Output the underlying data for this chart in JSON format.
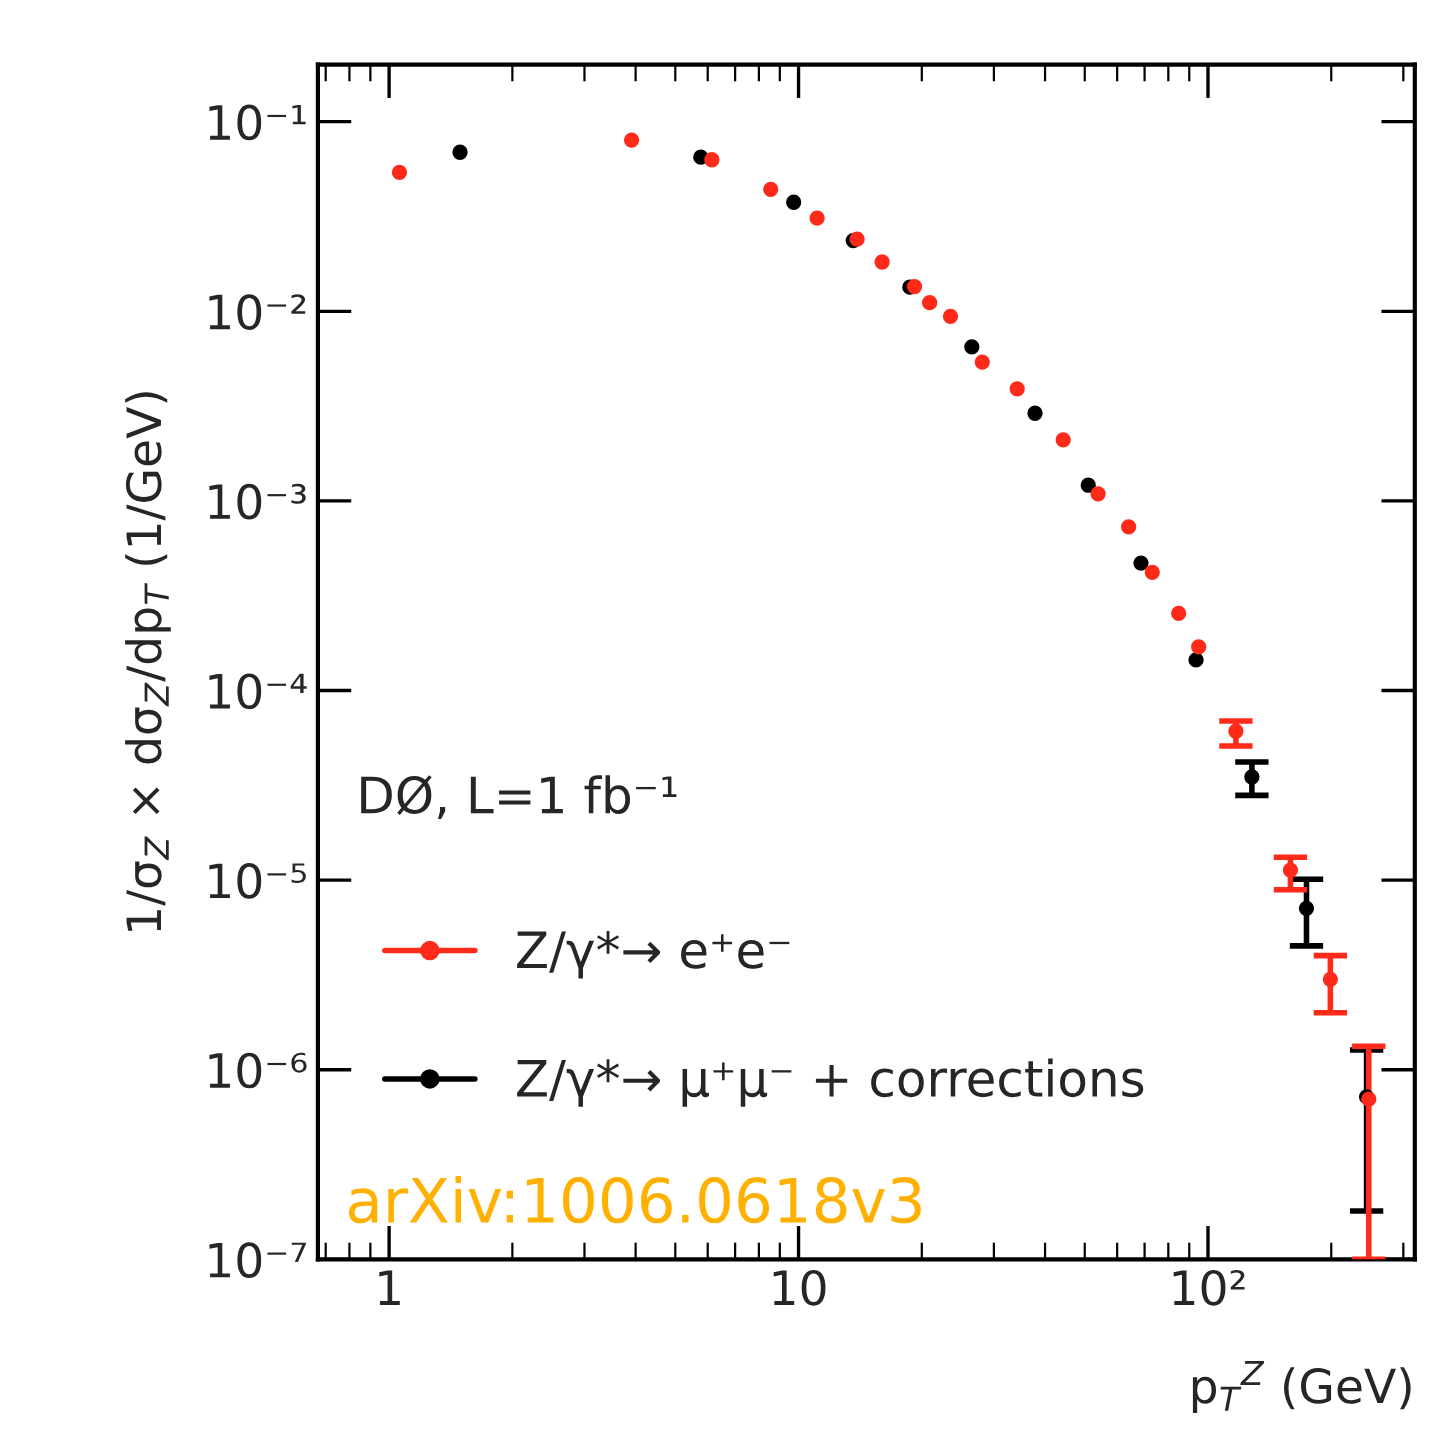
{
  "chart_data": {
    "type": "scatter",
    "xlabel": "p$_{T}$$^{Z}$ (GeV)",
    "ylabel": "1/σ$_{Z}$ × dσ$_{Z}$/dp$_{T}$ (1/GeV)",
    "log": "xy",
    "xlim": [
      0.67,
      320
    ],
    "ylim": [
      1e-07,
      0.2
    ],
    "xticks": [
      1,
      10,
      {
        "value": 100,
        "label": "10²"
      }
    ],
    "yticks": [
      {
        "value": 1e-07,
        "label": "10⁻⁷"
      },
      {
        "value": 1e-06,
        "label": "10⁻⁶"
      },
      {
        "value": 1e-05,
        "label": "10⁻⁵"
      },
      {
        "value": 0.0001,
        "label": "10⁻⁴"
      },
      {
        "value": 0.001,
        "label": "10⁻³"
      },
      {
        "value": 0.01,
        "label": "10⁻²"
      },
      {
        "value": 0.1,
        "label": "10⁻¹"
      }
    ],
    "grid": false,
    "legend": "bottom left",
    "marker": "circle",
    "annotations": [
      "DØ, L=1 fb⁻¹",
      "arXiv:1006.0618v3"
    ],
    "series": [
      {
        "name": "Z/γ*→ e⁺e⁻",
        "color": "#ff2a1a",
        "x": [
          1.06,
          3.91,
          6.14,
          8.55,
          11.1,
          13.9,
          16.0,
          19.2,
          20.9,
          23.5,
          28.1,
          34.2,
          44.3,
          53.9,
          64.0,
          73.1,
          84.8,
          94.9,
          117,
          159,
          199,
          247
        ],
        "values": [
          0.054,
          0.08,
          0.063,
          0.044,
          0.031,
          0.024,
          0.0182,
          0.0135,
          0.0111,
          0.0094,
          0.0054,
          0.0039,
          0.0021,
          0.00109,
          0.00073,
          0.00042,
          0.000255,
          0.00017,
          6.1e-05,
          1.13e-05,
          3e-06,
          7e-07
        ],
        "errors": [
          null,
          null,
          null,
          null,
          null,
          null,
          null,
          null,
          null,
          null,
          null,
          null,
          null,
          null,
          null,
          null,
          null,
          null,
          [
            5.1e-05,
            6.9e-05
          ],
          [
            8.9e-06,
            1.32e-05
          ],
          [
            2e-06,
            4e-06
          ],
          [
            1e-07,
            1.33e-06
          ]
        ]
      },
      {
        "name": "Z/γ*→ μ⁺μ⁻ + corrections",
        "color": "#000000",
        "x": [
          1.49,
          5.77,
          9.73,
          13.6,
          18.7,
          26.5,
          37.8,
          51.0,
          68.6,
          93.5,
          128,
          174,
          244
        ],
        "values": [
          0.069,
          0.065,
          0.0376,
          0.0236,
          0.0134,
          0.0065,
          0.0029,
          0.00121,
          0.00047,
          0.000145,
          3.5e-05,
          7.1e-06,
          7.2e-07
        ],
        "errors": [
          null,
          null,
          null,
          null,
          null,
          null,
          null,
          null,
          null,
          null,
          [
            2.8e-05,
            4.2e-05
          ],
          [
            4.5e-06,
            1.01e-05
          ],
          [
            1.8e-07,
            1.27e-06
          ]
        ]
      }
    ]
  }
}
